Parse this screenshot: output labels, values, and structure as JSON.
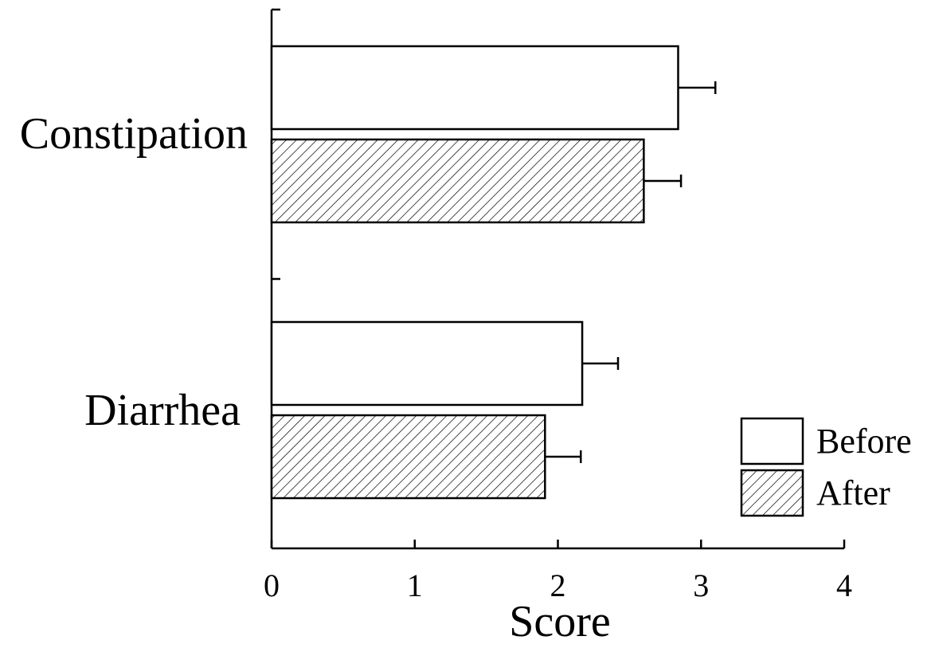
{
  "chart_data": {
    "type": "bar",
    "orientation": "horizontal",
    "categories": [
      "Constipation",
      "Diarrhea"
    ],
    "series": [
      {
        "name": "Before",
        "values": [
          2.84,
          2.17
        ],
        "errors": [
          0.26,
          0.25
        ],
        "fill": "#ffffff",
        "pattern": "none"
      },
      {
        "name": "After",
        "values": [
          2.6,
          1.91
        ],
        "errors": [
          0.26,
          0.25
        ],
        "fill": "#ffffff",
        "pattern": "diagonal-hatch"
      }
    ],
    "title": "",
    "xlabel": "Score",
    "ylabel": "",
    "xlim": [
      0,
      4
    ],
    "xticks": [
      "0",
      "1",
      "2",
      "3",
      "4"
    ],
    "grid": false,
    "legend_position": "bottom-right"
  }
}
